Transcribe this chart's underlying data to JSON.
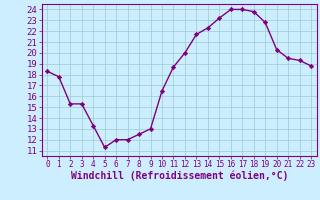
{
  "x": [
    0,
    1,
    2,
    3,
    4,
    5,
    6,
    7,
    8,
    9,
    10,
    11,
    12,
    13,
    14,
    15,
    16,
    17,
    18,
    19,
    20,
    21,
    22,
    23
  ],
  "y": [
    18.3,
    17.8,
    15.3,
    15.3,
    13.3,
    11.3,
    12.0,
    12.0,
    12.5,
    13.0,
    16.5,
    18.7,
    20.0,
    21.7,
    22.3,
    23.2,
    24.0,
    24.0,
    23.8,
    22.8,
    20.3,
    19.5,
    19.3,
    18.8
  ],
  "line_color": "#800080",
  "marker": "D",
  "marker_size": 2.2,
  "xlabel": "Windchill (Refroidissement éolien,°C)",
  "ylim": [
    10.5,
    24.5
  ],
  "xlim": [
    -0.5,
    23.5
  ],
  "yticks": [
    11,
    12,
    13,
    14,
    15,
    16,
    17,
    18,
    19,
    20,
    21,
    22,
    23,
    24
  ],
  "xticks": [
    0,
    1,
    2,
    3,
    4,
    5,
    6,
    7,
    8,
    9,
    10,
    11,
    12,
    13,
    14,
    15,
    16,
    17,
    18,
    19,
    20,
    21,
    22,
    23
  ],
  "bg_color": "#cceeff",
  "grid_color": "#99cccc",
  "label_color": "#800080",
  "tick_color": "#800080",
  "ytick_fontsize": 6.5,
  "xtick_fontsize": 5.5,
  "xlabel_fontsize": 7.0,
  "axis_line_color": "#800080",
  "linewidth": 1.0
}
